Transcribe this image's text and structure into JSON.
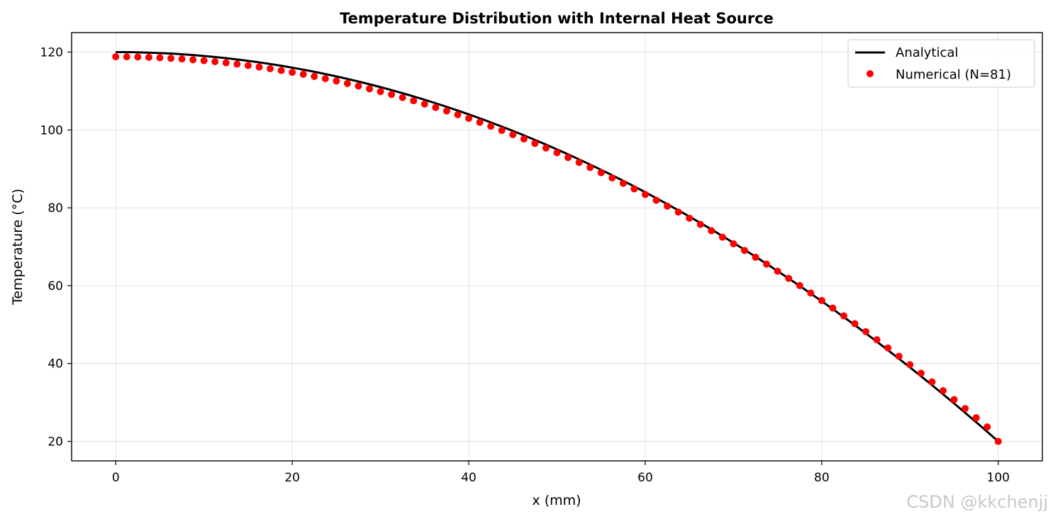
{
  "chart_data": {
    "type": "line",
    "title": "Temperature Distribution with Internal Heat Source",
    "xlabel": "x (mm)",
    "ylabel": "Temperature (°C)",
    "xlim": [
      -5,
      105
    ],
    "ylim": [
      15,
      125
    ],
    "xticks": [
      0,
      20,
      40,
      60,
      80,
      100
    ],
    "yticks": [
      20,
      40,
      60,
      80,
      100,
      120
    ],
    "grid": true,
    "legend_position": "top-right",
    "series": [
      {
        "name": "Analytical",
        "style": "line",
        "color": "#000000",
        "model": "T(x) = 120 - 100*(x/100)^2",
        "x_range": [
          0,
          100
        ],
        "samples": 101
      },
      {
        "name": "Numerical (N=81)",
        "style": "markers",
        "color": "#ff0000",
        "x": [
          0,
          1.25,
          2.5,
          3.75,
          5,
          6.25,
          7.5,
          8.75,
          10,
          11.25,
          12.5,
          13.75,
          15,
          16.25,
          17.5,
          18.75,
          20,
          21.25,
          22.5,
          23.75,
          25,
          26.25,
          27.5,
          28.75,
          30,
          31.25,
          32.5,
          33.75,
          35,
          36.25,
          37.5,
          38.75,
          40,
          41.25,
          42.5,
          43.75,
          45,
          46.25,
          47.5,
          48.75,
          50,
          51.25,
          52.5,
          53.75,
          55,
          56.25,
          57.5,
          58.75,
          60,
          61.25,
          62.5,
          63.75,
          65,
          66.25,
          67.5,
          68.75,
          70,
          71.25,
          72.5,
          73.75,
          75,
          76.25,
          77.5,
          78.75,
          80,
          81.25,
          82.5,
          83.75,
          85,
          86.25,
          87.5,
          88.75,
          90,
          91.25,
          92.5,
          93.75,
          95,
          96.25,
          97.5,
          98.75,
          100
        ],
        "values": [
          118.8,
          118.78,
          118.74,
          118.66,
          118.55,
          118.41,
          118.24,
          118.04,
          117.8,
          117.53,
          117.24,
          116.91,
          116.55,
          116.16,
          115.74,
          115.29,
          114.81,
          114.3,
          113.75,
          113.18,
          112.58,
          111.94,
          111.28,
          110.58,
          109.85,
          109.1,
          108.31,
          107.5,
          106.65,
          105.77,
          104.87,
          103.93,
          102.96,
          101.97,
          100.94,
          99.88,
          98.8,
          97.68,
          96.53,
          95.36,
          94.15,
          92.91,
          91.65,
          90.35,
          89.02,
          87.67,
          86.28,
          84.86,
          83.42,
          81.94,
          80.43,
          78.9,
          77.33,
          75.73,
          74.11,
          72.45,
          70.76,
          69.05,
          67.3,
          65.53,
          63.72,
          61.88,
          60.02,
          58.12,
          56.19,
          54.24,
          52.25,
          50.23,
          48.19,
          46.11,
          44.01,
          41.87,
          39.7,
          37.51,
          35.28,
          33.03,
          30.74,
          28.43,
          26.08,
          23.71,
          20.0
        ]
      }
    ]
  },
  "watermark": "CSDN @kkchenjj"
}
